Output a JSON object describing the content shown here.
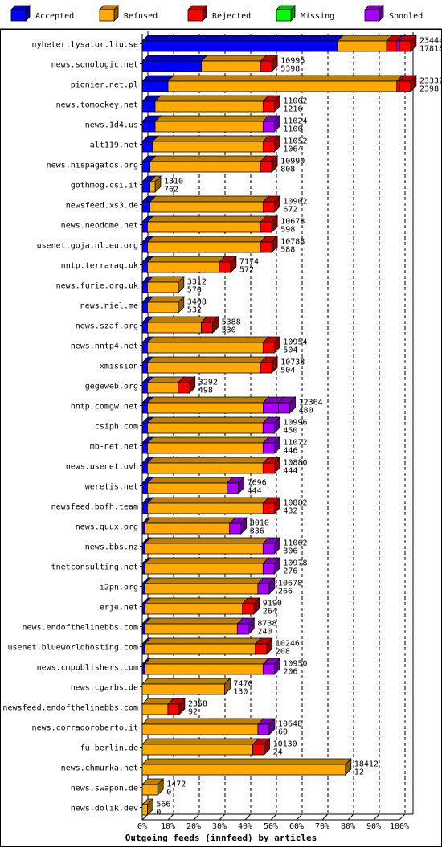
{
  "chart_data": {
    "type": "bar",
    "orientation": "horizontal",
    "stacked": true,
    "title": "Outgoing feeds (innfeed) by articles",
    "legend": [
      {
        "label": "Accepted",
        "color": "#0000ff"
      },
      {
        "label": "Refused",
        "color": "#ffaa00"
      },
      {
        "label": "Rejected",
        "color": "#ff0000"
      },
      {
        "label": "Missing",
        "color": "#00ff00"
      },
      {
        "label": "Spooled",
        "color": "#aa00ff"
      }
    ],
    "xlim": [
      0,
      100
    ],
    "x_ticks": [
      "0%",
      "10%",
      "20%",
      "30%",
      "40%",
      "50%",
      "60%",
      "70%",
      "80%",
      "90%",
      "100%"
    ],
    "grid": "vertical dashed",
    "series_names": [
      "Accepted",
      "Refused",
      "Rejected",
      "Missing",
      "Spooled"
    ],
    "rows": [
      {
        "label": "nyheter.lysator.liu.se",
        "total": "23444",
        "accepted": "17818",
        "pct": [
          76,
          19,
          4,
          0,
          1
        ]
      },
      {
        "label": "news.sonologic.net",
        "total": "10996",
        "accepted": "5398",
        "pct": [
          23,
          23,
          0,
          0,
          0
        ]
      },
      {
        "label": "pionier.net.pl",
        "total": "23332",
        "accepted": "2398",
        "pct": [
          10,
          89,
          1,
          0,
          0
        ]
      },
      {
        "label": "news.tomockey.net",
        "total": "11002",
        "accepted": "1216",
        "pct": [
          5,
          42,
          0,
          0,
          0
        ]
      },
      {
        "label": "news.1d4.us",
        "total": "11024",
        "accepted": "1100",
        "pct": [
          5,
          42,
          0,
          0,
          0
        ]
      },
      {
        "label": "alt119.net",
        "total": "11052",
        "accepted": "1064",
        "pct": [
          4,
          43,
          0,
          0,
          0
        ]
      },
      {
        "label": "news.hispagatos.org",
        "total": "10990",
        "accepted": "808",
        "pct": [
          3,
          43,
          0,
          0,
          0
        ]
      },
      {
        "label": "gothmog.csi.it",
        "total": "1310",
        "accepted": "762",
        "pct": [
          3,
          2,
          0,
          0,
          0
        ]
      },
      {
        "label": "newsfeed.xs3.de",
        "total": "10902",
        "accepted": "672",
        "pct": [
          3,
          44,
          0,
          0,
          0
        ]
      },
      {
        "label": "news.neodome.net",
        "total": "10678",
        "accepted": "598",
        "pct": [
          2,
          44,
          0,
          0,
          0
        ]
      },
      {
        "label": "usenet.goja.nl.eu.org",
        "total": "10788",
        "accepted": "588",
        "pct": [
          2,
          44,
          0,
          0,
          0
        ]
      },
      {
        "label": "nntp.terraraq.uk",
        "total": "7174",
        "accepted": "572",
        "pct": [
          2,
          28,
          0,
          0,
          0
        ]
      },
      {
        "label": "news.furie.org.uk",
        "total": "3312",
        "accepted": "570",
        "pct": [
          2,
          12,
          0,
          0,
          0
        ]
      },
      {
        "label": "news.niel.me",
        "total": "3408",
        "accepted": "532",
        "pct": [
          2,
          12,
          0,
          0,
          0
        ]
      },
      {
        "label": "news.szaf.org",
        "total": "5388",
        "accepted": "530",
        "pct": [
          2,
          21,
          0,
          0,
          0
        ]
      },
      {
        "label": "news.nntp4.net",
        "total": "10954",
        "accepted": "504",
        "pct": [
          2,
          45,
          0,
          0,
          0
        ]
      },
      {
        "label": "xmission",
        "total": "10738",
        "accepted": "504",
        "pct": [
          2,
          44,
          0,
          0,
          0
        ]
      },
      {
        "label": "gegeweb.org",
        "total": "3292",
        "accepted": "498",
        "pct": [
          2,
          12,
          0,
          0,
          0
        ]
      },
      {
        "label": "nntp.comgw.net",
        "total": "12364",
        "accepted": "480",
        "pct": [
          2,
          45,
          0,
          0,
          6
        ]
      },
      {
        "label": "csiph.com",
        "total": "10996",
        "accepted": "450",
        "pct": [
          2,
          45,
          0,
          0,
          0
        ]
      },
      {
        "label": "mb-net.net",
        "total": "11072",
        "accepted": "446",
        "pct": [
          2,
          45,
          0,
          0,
          0
        ]
      },
      {
        "label": "news.usenet.ovh",
        "total": "10880",
        "accepted": "444",
        "pct": [
          2,
          45,
          0,
          0,
          0
        ]
      },
      {
        "label": "weretis.net",
        "total": "7696",
        "accepted": "444",
        "pct": [
          2,
          31,
          0,
          0,
          0
        ]
      },
      {
        "label": "newsfeed.bofh.team",
        "total": "10882",
        "accepted": "432",
        "pct": [
          2,
          45,
          0,
          0,
          0
        ]
      },
      {
        "label": "news.quux.org",
        "total": "8010",
        "accepted": "336",
        "pct": [
          1,
          33,
          0,
          0,
          0
        ]
      },
      {
        "label": "news.bbs.nz",
        "total": "11062",
        "accepted": "306",
        "pct": [
          1,
          46,
          0,
          0,
          0
        ]
      },
      {
        "label": "tnetconsulting.net",
        "total": "10978",
        "accepted": "276",
        "pct": [
          1,
          46,
          0,
          0,
          0
        ]
      },
      {
        "label": "i2pn.org",
        "total": "10678",
        "accepted": "266",
        "pct": [
          1,
          44,
          0,
          0,
          0
        ]
      },
      {
        "label": "erje.net",
        "total": "9190",
        "accepted": "264",
        "pct": [
          1,
          38,
          0,
          0,
          0
        ]
      },
      {
        "label": "news.endofthelinebbs.com",
        "total": "8738",
        "accepted": "240",
        "pct": [
          1,
          36,
          0,
          0,
          0
        ]
      },
      {
        "label": "usenet.blueworldhosting.com",
        "total": "10246",
        "accepted": "208",
        "pct": [
          1,
          43,
          0,
          0,
          0
        ]
      },
      {
        "label": "news.cmpublishers.com",
        "total": "10950",
        "accepted": "206",
        "pct": [
          1,
          46,
          0,
          0,
          0
        ]
      },
      {
        "label": "news.cgarbs.de",
        "total": "7476",
        "accepted": "130",
        "pct": [
          0,
          32,
          0,
          0,
          0
        ]
      },
      {
        "label": "newsfeed.endofthelinebbs.com",
        "total": "2358",
        "accepted": "92",
        "pct": [
          0,
          10,
          0,
          0,
          0
        ]
      },
      {
        "label": "news.corradoroberto.it",
        "total": "10648",
        "accepted": "60",
        "pct": [
          0,
          45,
          0,
          0,
          0
        ]
      },
      {
        "label": "fu-berlin.de",
        "total": "10130",
        "accepted": "24",
        "pct": [
          0,
          43,
          0,
          0,
          0
        ]
      },
      {
        "label": "news.chmurka.net",
        "total": "18412",
        "accepted": "12",
        "pct": [
          0,
          79,
          0,
          0,
          0
        ]
      },
      {
        "label": "news.swapon.de",
        "total": "1472",
        "accepted": "0",
        "pct": [
          0,
          6,
          0,
          0,
          0
        ]
      },
      {
        "label": "news.dolik.dev",
        "total": "566",
        "accepted": "0",
        "pct": [
          0,
          2,
          0,
          0,
          0
        ]
      }
    ],
    "tip_extras": {
      "news.sonologic.net": [
        0,
        0
      ],
      "news.tomockey.net": [
        0,
        0
      ],
      "news.1d4.us": [
        0,
        0
      ]
    },
    "tip_colors": {
      "nyheter.lysator.liu.se": "#ff0000",
      "news.sonologic.net": "#ff0000",
      "pionier.net.pl": "#ff0000",
      "news.tomockey.net": "#ff0000",
      "news.1d4.us": "#aa00ff",
      "alt119.net": "#ff0000",
      "news.hispagatos.org": "#ff0000",
      "gothmog.csi.it": "#ffaa00",
      "newsfeed.xs3.de": "#ff0000",
      "news.neodome.net": "#ff0000",
      "usenet.goja.nl.eu.org": "#ff0000",
      "nntp.terraraq.uk": "#ff0000",
      "news.furie.org.uk": "#ffaa00",
      "news.niel.me": "#ffaa00",
      "news.szaf.org": "#ff0000",
      "news.nntp4.net": "#ff0000",
      "xmission": "#ff0000",
      "gegeweb.org": "#ff0000",
      "nntp.comgw.net": "#aa00ff",
      "csiph.com": "#aa00ff",
      "mb-net.net": "#aa00ff",
      "news.usenet.ovh": "#ff0000",
      "weretis.net": "#aa00ff",
      "newsfeed.bofh.team": "#ff0000",
      "news.quux.org": "#aa00ff",
      "news.bbs.nz": "#aa00ff",
      "tnetconsulting.net": "#aa00ff",
      "i2pn.org": "#aa00ff",
      "erje.net": "#ff0000",
      "news.endofthelinebbs.com": "#aa00ff",
      "usenet.blueworldhosting.com": "#ff0000",
      "news.cmpublishers.com": "#aa00ff",
      "news.cgarbs.de": "#ffaa00",
      "newsfeed.endofthelinebbs.com": "#ff0000",
      "news.corradoroberto.it": "#aa00ff",
      "fu-berlin.de": "#ff0000",
      "news.chmurka.net": "#ffaa00",
      "news.swapon.de": "#ffaa00",
      "news.dolik.dev": "#ffaa00"
    }
  }
}
